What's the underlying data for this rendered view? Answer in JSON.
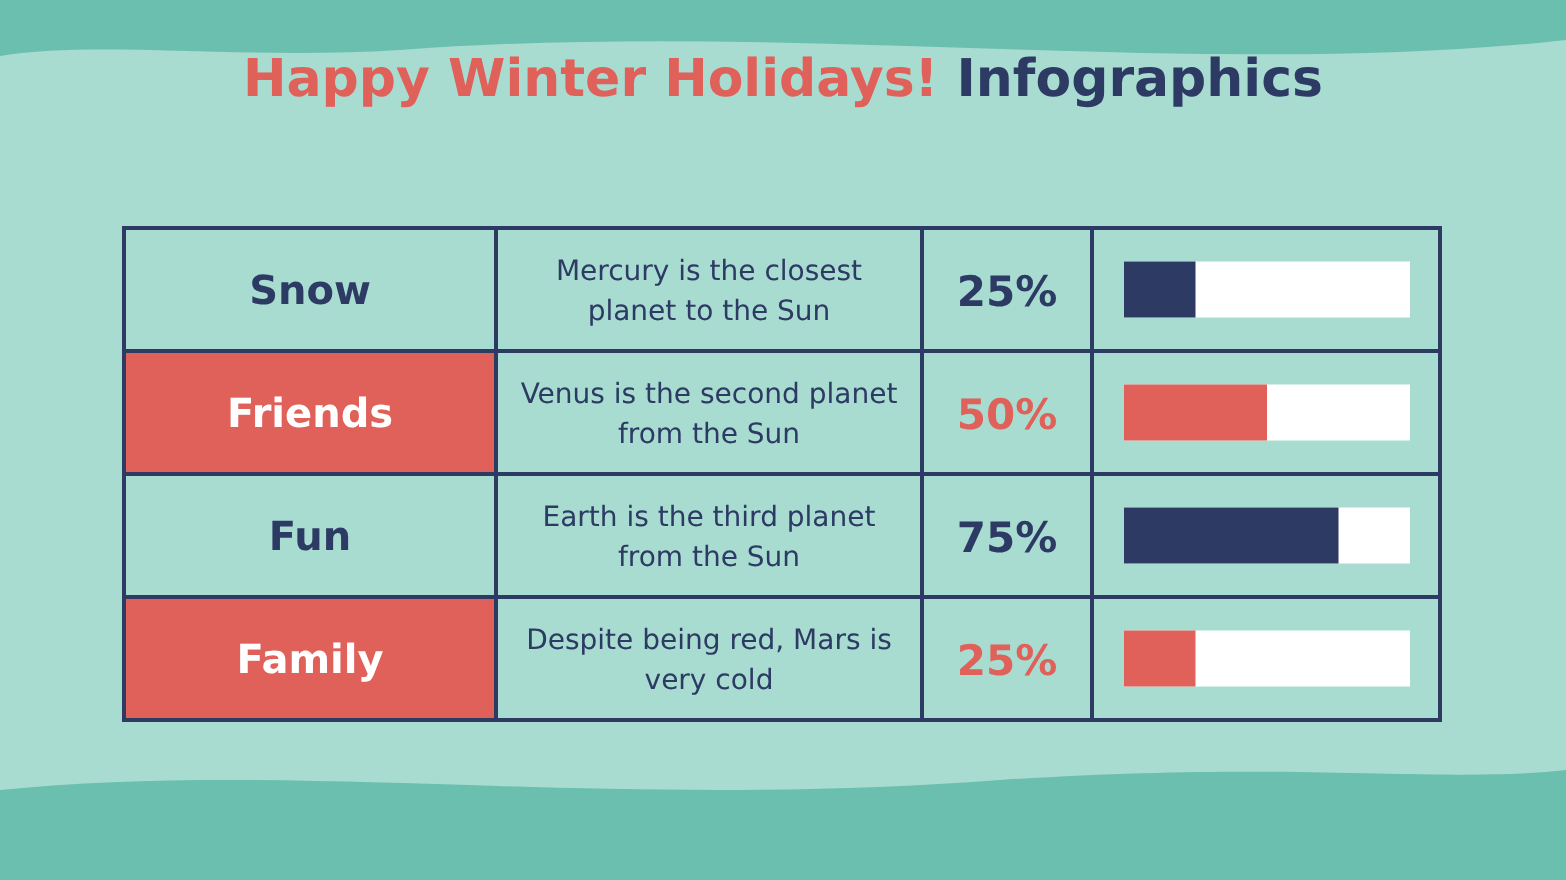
{
  "chart_data": {
    "type": "bar",
    "orientation": "horizontal",
    "title": "Happy Winter Holidays! Infographics",
    "categories": [
      "Snow",
      "Friends",
      "Fun",
      "Family"
    ],
    "values": [
      25,
      50,
      75,
      25
    ],
    "colors": [
      "#2d3a64",
      "#e0605a",
      "#2d3a64",
      "#e0605a"
    ],
    "value_labels": [
      "25%",
      "50%",
      "75%",
      "25%"
    ],
    "xlim": [
      0,
      100
    ],
    "tick_labels": "y",
    "annotations": [
      "Mercury is the closest planet to the Sun",
      "Venus is the second planet from the Sun",
      "Earth is the third planet from the Sun",
      "Despite being red, Mars is very cold"
    ]
  }
}
